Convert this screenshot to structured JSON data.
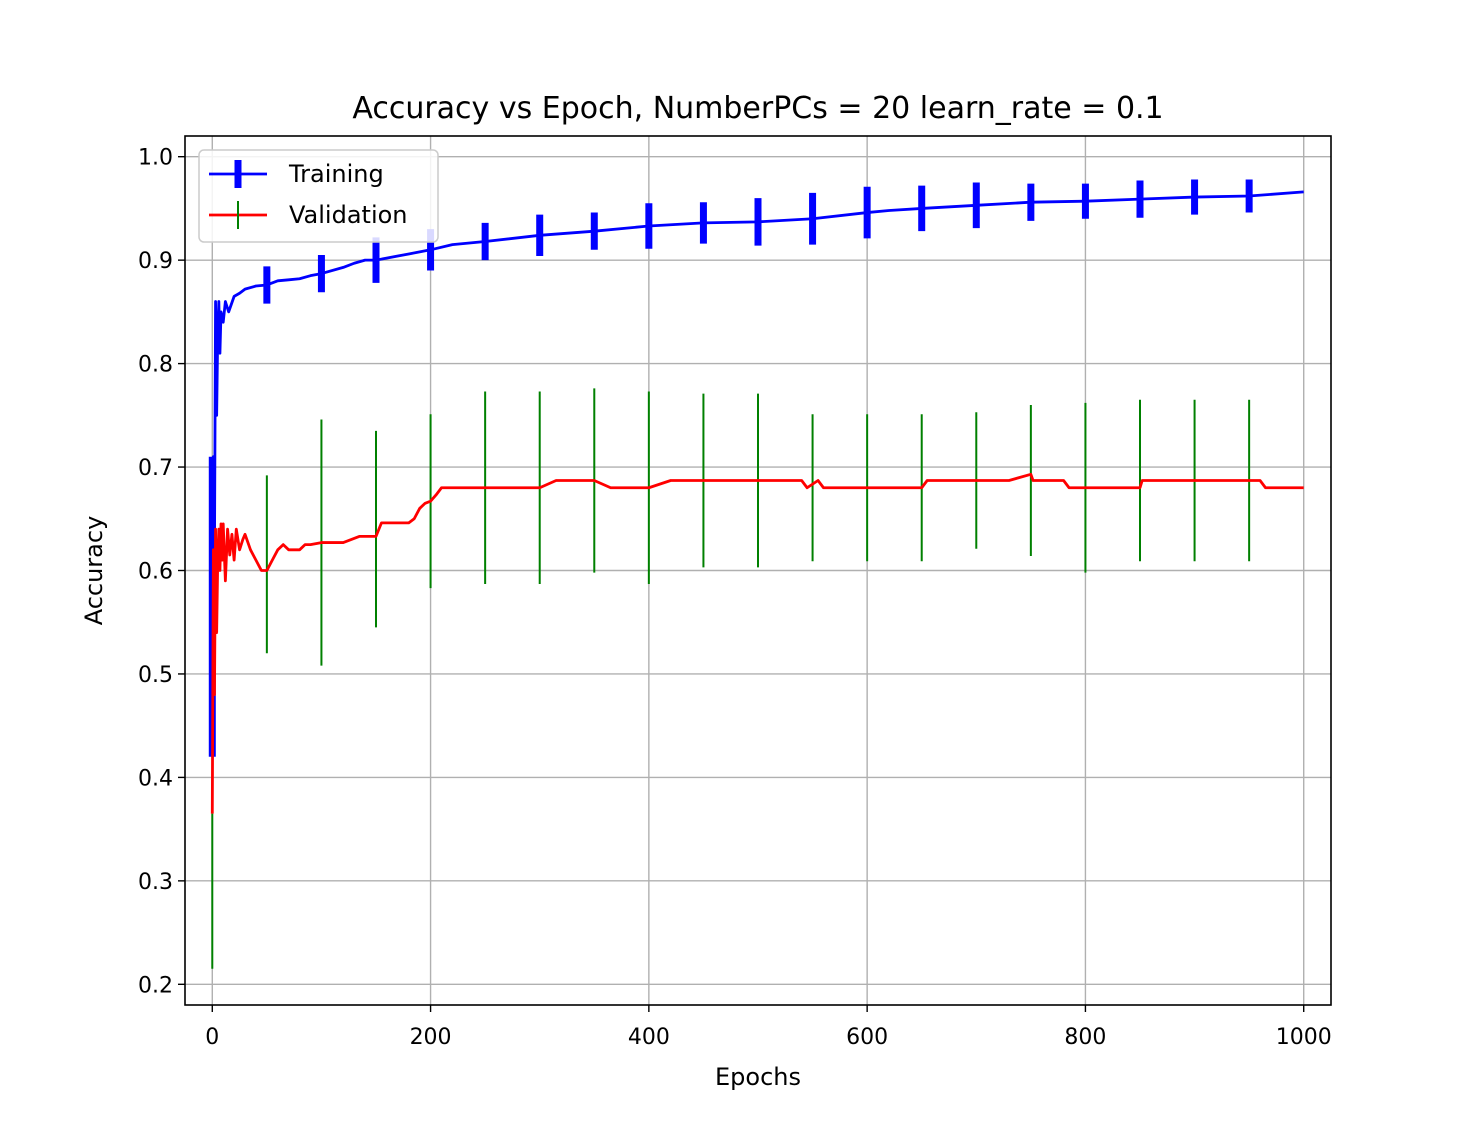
{
  "chart_data": {
    "type": "line",
    "title": "Accuracy vs Epoch, NumberPCs = 20 learn_rate = 0.1",
    "xlabel": "Epochs",
    "ylabel": "Accuracy",
    "xlim": [
      -25,
      1025
    ],
    "ylim": [
      0.18,
      1.02
    ],
    "xticks": [
      0,
      200,
      400,
      600,
      800,
      1000
    ],
    "yticks": [
      0.2,
      0.3,
      0.4,
      0.5,
      0.6,
      0.7,
      0.8,
      0.9,
      1.0
    ],
    "grid": true,
    "legend_position": "top-left",
    "series": [
      {
        "name": "Training",
        "color": "#0000ff",
        "errorbar_color": "#0000ff",
        "x": [
          0,
          1,
          2,
          3,
          4,
          5,
          6,
          7,
          8,
          10,
          12,
          15,
          20,
          25,
          30,
          40,
          50,
          60,
          70,
          80,
          90,
          100,
          120,
          130,
          140,
          150,
          170,
          180,
          190,
          200,
          220,
          250,
          300,
          350,
          400,
          450,
          500,
          550,
          600,
          620,
          650,
          700,
          750,
          800,
          850,
          900,
          950,
          1000
        ],
        "values": [
          0.42,
          0.71,
          0.62,
          0.86,
          0.75,
          0.83,
          0.86,
          0.81,
          0.85,
          0.84,
          0.86,
          0.85,
          0.865,
          0.868,
          0.872,
          0.875,
          0.876,
          0.88,
          0.881,
          0.882,
          0.885,
          0.887,
          0.893,
          0.897,
          0.9,
          0.9,
          0.904,
          0.906,
          0.908,
          0.91,
          0.915,
          0.918,
          0.924,
          0.928,
          0.933,
          0.936,
          0.937,
          0.94,
          0.946,
          0.948,
          0.95,
          0.953,
          0.956,
          0.957,
          0.959,
          0.961,
          0.962,
          0.966
        ],
        "errorbars": [
          {
            "x": 0,
            "y": 0.565,
            "err": 0.145
          },
          {
            "x": 50,
            "y": 0.876,
            "err": 0.018
          },
          {
            "x": 100,
            "y": 0.887,
            "err": 0.018
          },
          {
            "x": 150,
            "y": 0.9,
            "err": 0.022
          },
          {
            "x": 200,
            "y": 0.91,
            "err": 0.02
          },
          {
            "x": 250,
            "y": 0.918,
            "err": 0.018
          },
          {
            "x": 300,
            "y": 0.924,
            "err": 0.02
          },
          {
            "x": 350,
            "y": 0.928,
            "err": 0.018
          },
          {
            "x": 400,
            "y": 0.933,
            "err": 0.022
          },
          {
            "x": 450,
            "y": 0.936,
            "err": 0.02
          },
          {
            "x": 500,
            "y": 0.937,
            "err": 0.023
          },
          {
            "x": 550,
            "y": 0.94,
            "err": 0.025
          },
          {
            "x": 600,
            "y": 0.946,
            "err": 0.025
          },
          {
            "x": 650,
            "y": 0.95,
            "err": 0.022
          },
          {
            "x": 700,
            "y": 0.953,
            "err": 0.022
          },
          {
            "x": 750,
            "y": 0.956,
            "err": 0.018
          },
          {
            "x": 800,
            "y": 0.957,
            "err": 0.017
          },
          {
            "x": 850,
            "y": 0.959,
            "err": 0.018
          },
          {
            "x": 900,
            "y": 0.961,
            "err": 0.017
          },
          {
            "x": 950,
            "y": 0.962,
            "err": 0.016
          }
        ]
      },
      {
        "name": "Validation",
        "color": "#ff0000",
        "errorbar_color": "#008000",
        "x": [
          0,
          1,
          2,
          3,
          4,
          5,
          6,
          7,
          8,
          9,
          10,
          12,
          14,
          16,
          18,
          20,
          22,
          25,
          28,
          30,
          35,
          40,
          45,
          50,
          55,
          60,
          65,
          70,
          80,
          85,
          90,
          100,
          120,
          135,
          150,
          155,
          180,
          185,
          190,
          195,
          200,
          205,
          210,
          240,
          250,
          300,
          315,
          350,
          365,
          400,
          420,
          450,
          500,
          540,
          545,
          555,
          560,
          600,
          650,
          655,
          700,
          730,
          750,
          752,
          780,
          785,
          800,
          850,
          852,
          900,
          950,
          960,
          965,
          1000
        ],
        "values": [
          0.365,
          0.62,
          0.48,
          0.64,
          0.54,
          0.61,
          0.64,
          0.6,
          0.645,
          0.61,
          0.645,
          0.59,
          0.64,
          0.615,
          0.635,
          0.61,
          0.64,
          0.62,
          0.63,
          0.635,
          0.62,
          0.61,
          0.6,
          0.6,
          0.61,
          0.62,
          0.625,
          0.62,
          0.62,
          0.625,
          0.625,
          0.627,
          0.627,
          0.633,
          0.633,
          0.646,
          0.646,
          0.65,
          0.66,
          0.665,
          0.667,
          0.673,
          0.68,
          0.68,
          0.68,
          0.68,
          0.687,
          0.687,
          0.68,
          0.68,
          0.687,
          0.687,
          0.687,
          0.687,
          0.68,
          0.687,
          0.68,
          0.68,
          0.68,
          0.687,
          0.687,
          0.687,
          0.693,
          0.687,
          0.687,
          0.68,
          0.68,
          0.68,
          0.687,
          0.687,
          0.687,
          0.687,
          0.68,
          0.68
        ],
        "errorbars": [
          {
            "x": 0,
            "y": 0.29,
            "err": 0.075
          },
          {
            "x": 50,
            "y": 0.606,
            "err": 0.086
          },
          {
            "x": 100,
            "y": 0.627,
            "err": 0.119
          },
          {
            "x": 150,
            "y": 0.64,
            "err": 0.095
          },
          {
            "x": 200,
            "y": 0.667,
            "err": 0.084
          },
          {
            "x": 250,
            "y": 0.68,
            "err": 0.093
          },
          {
            "x": 300,
            "y": 0.68,
            "err": 0.093
          },
          {
            "x": 350,
            "y": 0.687,
            "err": 0.089
          },
          {
            "x": 400,
            "y": 0.68,
            "err": 0.093
          },
          {
            "x": 450,
            "y": 0.687,
            "err": 0.084
          },
          {
            "x": 500,
            "y": 0.687,
            "err": 0.084
          },
          {
            "x": 550,
            "y": 0.68,
            "err": 0.071
          },
          {
            "x": 600,
            "y": 0.68,
            "err": 0.071
          },
          {
            "x": 650,
            "y": 0.68,
            "err": 0.071
          },
          {
            "x": 700,
            "y": 0.687,
            "err": 0.066
          },
          {
            "x": 750,
            "y": 0.687,
            "err": 0.073
          },
          {
            "x": 800,
            "y": 0.68,
            "err": 0.082
          },
          {
            "x": 850,
            "y": 0.687,
            "err": 0.078
          },
          {
            "x": 900,
            "y": 0.687,
            "err": 0.078
          },
          {
            "x": 950,
            "y": 0.687,
            "err": 0.078
          }
        ]
      }
    ]
  }
}
